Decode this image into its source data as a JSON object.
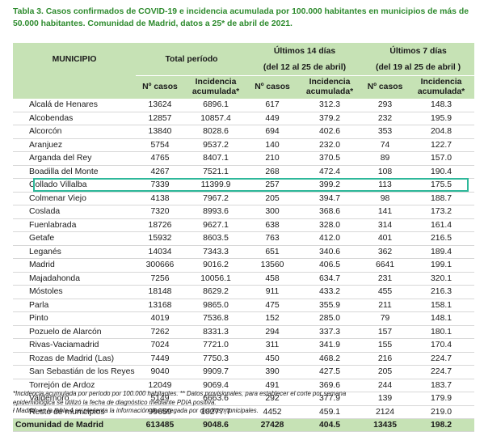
{
  "caption": {
    "line1": "Tabla 3. Casos confirmados de COVID-19 e incidencia acumulada por 100.000 habitantes en municipios de más de",
    "line2": "50.000 habitantes. Comunidad de Madrid, datos a 25* de abril de 2021."
  },
  "header": {
    "municipio": "MUNICIPIO",
    "total_periodo": "Total período",
    "ultimos14": "Últimos 14 días",
    "ultimos14_range": "(del 12 al 25 de abril)",
    "ultimos7": "Últimos 7 días",
    "ultimos7_range": "(del 19 al 25 de abril )",
    "n_casos": "Nº casos",
    "incidencia_l1": "Incidencia",
    "incidencia_l2": "acumulada*"
  },
  "rows": [
    {
      "name": "Alcalá de Henares",
      "c_tot": "13624",
      "i_tot": "6896.1",
      "c14": "617",
      "i14": "312.3",
      "c7": "293",
      "i7": "148.3"
    },
    {
      "name": "Alcobendas",
      "c_tot": "12857",
      "i_tot": "10857.4",
      "c14": "449",
      "i14": "379.2",
      "c7": "232",
      "i7": "195.9"
    },
    {
      "name": "Alcorcón",
      "c_tot": "13840",
      "i_tot": "8028.6",
      "c14": "694",
      "i14": "402.6",
      "c7": "353",
      "i7": "204.8"
    },
    {
      "name": "Aranjuez",
      "c_tot": "5754",
      "i_tot": "9537.2",
      "c14": "140",
      "i14": "232.0",
      "c7": "74",
      "i7": "122.7"
    },
    {
      "name": "Arganda del Rey",
      "c_tot": "4765",
      "i_tot": "8407.1",
      "c14": "210",
      "i14": "370.5",
      "c7": "89",
      "i7": "157.0"
    },
    {
      "name": "Boadilla del Monte",
      "c_tot": "4267",
      "i_tot": "7521.1",
      "c14": "268",
      "i14": "472.4",
      "c7": "108",
      "i7": "190.4"
    },
    {
      "name": "Collado Villalba",
      "c_tot": "7339",
      "i_tot": "11399.9",
      "c14": "257",
      "i14": "399.2",
      "c7": "113",
      "i7": "175.5"
    },
    {
      "name": "Colmenar Viejo",
      "c_tot": "4138",
      "i_tot": "7967.2",
      "c14": "205",
      "i14": "394.7",
      "c7": "98",
      "i7": "188.7"
    },
    {
      "name": "Coslada",
      "c_tot": "7320",
      "i_tot": "8993.6",
      "c14": "300",
      "i14": "368.6",
      "c7": "141",
      "i7": "173.2"
    },
    {
      "name": "Fuenlabrada",
      "c_tot": "18726",
      "i_tot": "9627.1",
      "c14": "638",
      "i14": "328.0",
      "c7": "314",
      "i7": "161.4"
    },
    {
      "name": "Getafe",
      "c_tot": "15932",
      "i_tot": "8603.5",
      "c14": "763",
      "i14": "412.0",
      "c7": "401",
      "i7": "216.5"
    },
    {
      "name": "Leganés",
      "c_tot": "14034",
      "i_tot": "7343.3",
      "c14": "651",
      "i14": "340.6",
      "c7": "362",
      "i7": "189.4"
    },
    {
      "name": "Madrid",
      "c_tot": "300666",
      "i_tot": "9016.2",
      "c14": "13560",
      "i14": "406.5",
      "c7": "6641",
      "i7": "199.1"
    },
    {
      "name": "Majadahonda",
      "c_tot": "7256",
      "i_tot": "10056.1",
      "c14": "458",
      "i14": "634.7",
      "c7": "231",
      "i7": "320.1"
    },
    {
      "name": "Móstoles",
      "c_tot": "18148",
      "i_tot": "8629.2",
      "c14": "911",
      "i14": "433.2",
      "c7": "455",
      "i7": "216.3"
    },
    {
      "name": "Parla",
      "c_tot": "13168",
      "i_tot": "9865.0",
      "c14": "475",
      "i14": "355.9",
      "c7": "211",
      "i7": "158.1"
    },
    {
      "name": "Pinto",
      "c_tot": "4019",
      "i_tot": "7536.8",
      "c14": "152",
      "i14": "285.0",
      "c7": "79",
      "i7": "148.1"
    },
    {
      "name": "Pozuelo de Alarcón",
      "c_tot": "7262",
      "i_tot": "8331.3",
      "c14": "294",
      "i14": "337.3",
      "c7": "157",
      "i7": "180.1"
    },
    {
      "name": "Rivas-Vaciamadrid",
      "c_tot": "7024",
      "i_tot": "7721.0",
      "c14": "311",
      "i14": "341.9",
      "c7": "155",
      "i7": "170.4"
    },
    {
      "name": "Rozas de Madrid (Las)",
      "c_tot": "7449",
      "i_tot": "7750.3",
      "c14": "450",
      "i14": "468.2",
      "c7": "216",
      "i7": "224.7"
    },
    {
      "name": "San Sebastián de los Reyes",
      "c_tot": "9040",
      "i_tot": "9909.7",
      "c14": "390",
      "i14": "427.5",
      "c7": "205",
      "i7": "224.7"
    },
    {
      "name": "Torrejón de Ardoz",
      "c_tot": "12049",
      "i_tot": "9069.4",
      "c14": "491",
      "i14": "369.6",
      "c7": "244",
      "i7": "183.7"
    },
    {
      "name": "Valdemoro",
      "c_tot": "5149",
      "i_tot": "6663.6",
      "c14": "292",
      "i14": "377.9",
      "c7": "139",
      "i7": "179.9"
    },
    {
      "name": "Resto de municipios",
      "c_tot": "99659",
      "i_tot": "10277.7",
      "c14": "4452",
      "i14": "459.1",
      "c7": "2124",
      "i7": "219.0"
    }
  ],
  "total": {
    "name": "Comunidad de Madrid",
    "c_tot": "613485",
    "i_tot": "9048.6",
    "c14": "27428",
    "i14": "404.5",
    "c7": "13435",
    "i7": "198.2"
  },
  "highlighted_row": "Colmenar Viejo",
  "notes": {
    "line1": "*Incidencia acumulada por período por 100.000 habitantes. ** Datos provisionales, para establecer el corte por semana",
    "line2": "epidemiológica se utilizó la fecha de diagnóstico mediante PDIA positiva.",
    "line3": "ł Madrid: en la tabla 4 se presenta la información desagregada por distritos municipales."
  },
  "colors": {
    "header_bg": "#c6e2b5",
    "caption": "#2e8b2e",
    "highlight": "#2eb89a"
  }
}
